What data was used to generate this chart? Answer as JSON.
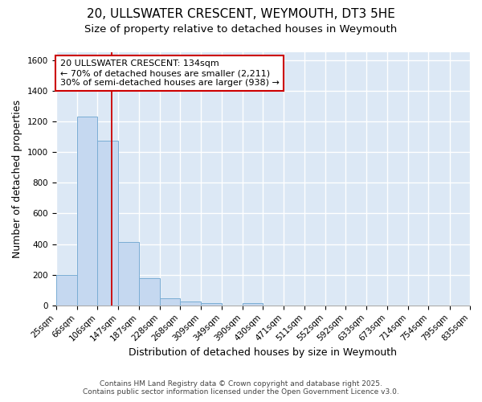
{
  "title": "20, ULLSWATER CRESCENT, WEYMOUTH, DT3 5HE",
  "subtitle": "Size of property relative to detached houses in Weymouth",
  "xlabel": "Distribution of detached houses by size in Weymouth",
  "ylabel": "Number of detached properties",
  "footnote1": "Contains HM Land Registry data © Crown copyright and database right 2025.",
  "footnote2": "Contains public sector information licensed under the Open Government Licence v3.0.",
  "bin_edges": [
    25,
    66,
    106,
    147,
    187,
    228,
    268,
    309,
    349,
    390,
    430,
    471,
    511,
    552,
    592,
    633,
    673,
    714,
    754,
    795,
    835
  ],
  "bar_heights": [
    200,
    1230,
    1075,
    415,
    175,
    45,
    25,
    15,
    0,
    15,
    0,
    0,
    0,
    0,
    0,
    0,
    0,
    0,
    0,
    0
  ],
  "bar_color": "#c5d8f0",
  "bar_edgecolor": "#7aadd4",
  "red_line_x": 134,
  "annotation_line1": "20 ULLSWATER CRESCENT: 134sqm",
  "annotation_line2": "← 70% of detached houses are smaller (2,211)",
  "annotation_line3": "30% of semi-detached houses are larger (938) →",
  "annotation_box_color": "#ffffff",
  "annotation_box_edgecolor": "#cc0000",
  "ylim": [
    0,
    1650
  ],
  "yticks": [
    0,
    200,
    400,
    600,
    800,
    1000,
    1200,
    1400,
    1600
  ],
  "background_color": "#dce8f5",
  "grid_color": "#ffffff",
  "fig_background": "#ffffff",
  "title_fontsize": 11,
  "subtitle_fontsize": 9.5,
  "tick_label_fontsize": 7.5,
  "axis_label_fontsize": 9,
  "annotation_fontsize": 8,
  "footnote_fontsize": 6.5
}
